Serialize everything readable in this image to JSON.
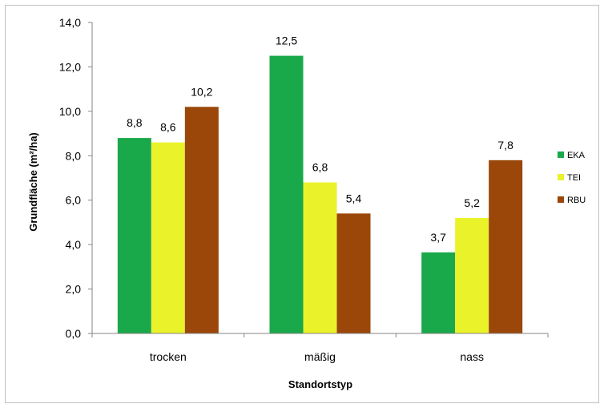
{
  "chart_data": {
    "type": "bar",
    "title": "",
    "xlabel": "Standortstyp",
    "ylabel": "Grundfläche (m²/ha)",
    "ylim": [
      0,
      14
    ],
    "yticks": [
      "0,0",
      "2,0",
      "4,0",
      "6,0",
      "8,0",
      "10,0",
      "12,0",
      "14,0"
    ],
    "categories": [
      "trocken",
      "mäßig",
      "nass"
    ],
    "series": [
      {
        "name": "EKA",
        "color": "#19a84a",
        "values": [
          8.8,
          12.5,
          3.65
        ],
        "labels": [
          "8,8",
          "12,5",
          "3,7"
        ]
      },
      {
        "name": "TEI",
        "color": "#eaf22a",
        "values": [
          8.6,
          6.8,
          5.2
        ],
        "labels": [
          "8,6",
          "6,8",
          "5,2"
        ]
      },
      {
        "name": "RBU",
        "color": "#9a4709",
        "values": [
          10.2,
          5.4,
          7.8
        ],
        "labels": [
          "10,2",
          "5,4",
          "7,8"
        ]
      }
    ],
    "grid": false,
    "legend_position": "right"
  }
}
